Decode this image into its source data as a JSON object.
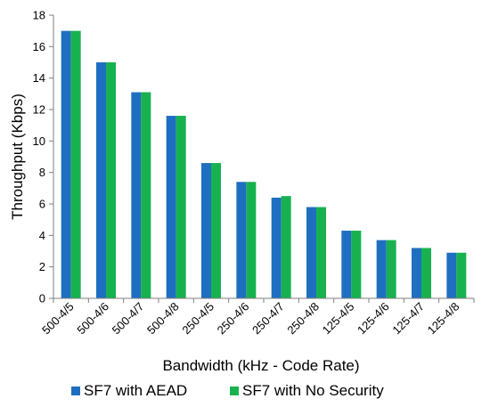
{
  "chart_data": {
    "type": "bar",
    "title": "",
    "xlabel": "Bandwidth (kHz - Code Rate)",
    "ylabel": "Throughput (Kbps)",
    "ylim": [
      0,
      18
    ],
    "yticks": [
      0,
      2,
      4,
      6,
      8,
      10,
      12,
      14,
      16,
      18
    ],
    "categories": [
      "500-4/5",
      "500-4/6",
      "500-4/7",
      "500-4/8",
      "250-4/5",
      "250-4/6",
      "250-4/7",
      "250-4/8",
      "125-4/5",
      "125-4/6",
      "125-4/7",
      "125-4/8"
    ],
    "series": [
      {
        "name": "SF7 with AEAD",
        "color": "#1f6fc0",
        "values": [
          17.0,
          15.0,
          13.1,
          11.6,
          8.6,
          7.4,
          6.4,
          5.8,
          4.3,
          3.7,
          3.2,
          2.9
        ]
      },
      {
        "name": "SF7 with No Security",
        "color": "#17b24f",
        "values": [
          17.0,
          15.0,
          13.1,
          11.6,
          8.6,
          7.4,
          6.5,
          5.8,
          4.3,
          3.7,
          3.2,
          2.9
        ]
      }
    ],
    "grid": false,
    "legend_position": "bottom"
  }
}
